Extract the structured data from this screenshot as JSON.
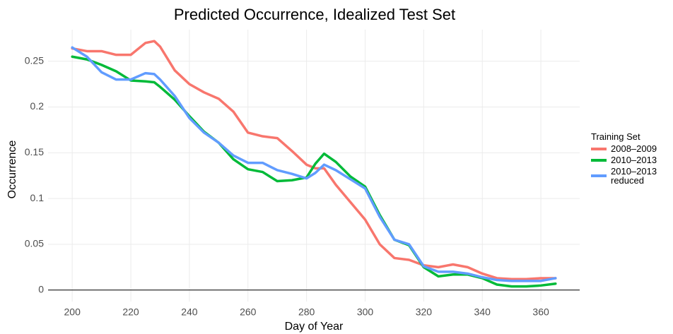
{
  "chart_data": {
    "type": "line",
    "title": "Predicted Occurrence, Idealized Test Set",
    "xlabel": "Day of Year",
    "ylabel": "Occurrence",
    "x": [
      200,
      205,
      210,
      215,
      220,
      225,
      228,
      230,
      235,
      240,
      245,
      250,
      255,
      260,
      265,
      270,
      275,
      280,
      283,
      286,
      290,
      295,
      300,
      305,
      310,
      315,
      320,
      325,
      330,
      335,
      340,
      345,
      350,
      355,
      360,
      365
    ],
    "series": [
      {
        "name": "2008–2009",
        "color": "#F8766D",
        "values": [
          0.264,
          0.261,
          0.261,
          0.257,
          0.257,
          0.27,
          0.272,
          0.266,
          0.24,
          0.225,
          0.216,
          0.209,
          0.195,
          0.172,
          0.168,
          0.166,
          0.152,
          0.137,
          0.133,
          0.133,
          0.115,
          0.096,
          0.077,
          0.05,
          0.035,
          0.033,
          0.027,
          0.025,
          0.028,
          0.025,
          0.018,
          0.013,
          0.012,
          0.012,
          0.013,
          0.013
        ]
      },
      {
        "name": "2010–2013",
        "color": "#00BA38",
        "values": [
          0.255,
          0.252,
          0.246,
          0.239,
          0.229,
          0.228,
          0.227,
          0.222,
          0.208,
          0.19,
          0.173,
          0.161,
          0.143,
          0.132,
          0.129,
          0.119,
          0.12,
          0.123,
          0.138,
          0.149,
          0.14,
          0.124,
          0.113,
          0.082,
          0.055,
          0.049,
          0.025,
          0.015,
          0.017,
          0.017,
          0.013,
          0.006,
          0.004,
          0.004,
          0.005,
          0.007
        ]
      },
      {
        "name": "2010–2013 reduced",
        "color": "#619CFF",
        "values": [
          0.265,
          0.255,
          0.238,
          0.23,
          0.23,
          0.237,
          0.236,
          0.23,
          0.212,
          0.188,
          0.172,
          0.161,
          0.147,
          0.139,
          0.139,
          0.131,
          0.127,
          0.122,
          0.128,
          0.137,
          0.131,
          0.121,
          0.111,
          0.08,
          0.055,
          0.05,
          0.026,
          0.02,
          0.02,
          0.018,
          0.014,
          0.011,
          0.01,
          0.01,
          0.01,
          0.013
        ]
      }
    ],
    "legend_title": "Training Set",
    "legend": "right",
    "xlim": [
      191.75,
      373.25
    ],
    "xticks": [
      200,
      220,
      240,
      260,
      280,
      300,
      320,
      340,
      360
    ],
    "ylim": [
      -0.0125,
      0.2845
    ],
    "yticks": [
      0,
      0.05,
      0.1,
      0.15,
      0.2,
      0.25
    ],
    "grid": true
  }
}
